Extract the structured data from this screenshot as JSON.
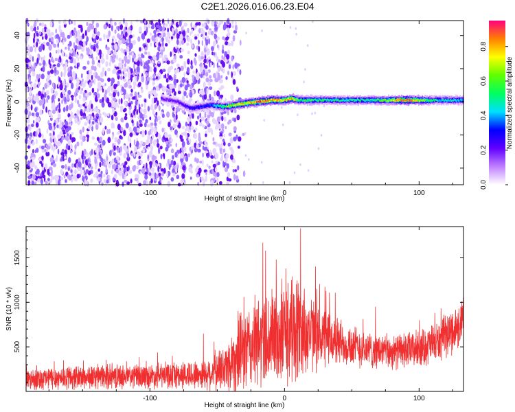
{
  "figure_title": "C2E1.2026.016.06.23.E04",
  "chart_data": [
    {
      "type": "heatmap",
      "title": "C2E1.2026.016.06.23.E04",
      "xlabel": "Height of straight line (km)",
      "ylabel": "Frequency (Hz)",
      "xlim": [
        -192,
        133
      ],
      "ylim": [
        -50,
        49
      ],
      "x_ticks": [
        -100,
        0,
        100
      ],
      "x_tick_labels": [
        "-100",
        "0",
        "100"
      ],
      "y_ticks": [
        -40,
        -20,
        0,
        20,
        40
      ],
      "y_tick_labels": [
        "-40",
        "-20",
        "0",
        "20",
        "40"
      ],
      "colorbar": {
        "label": "Normalized spectral amplitude",
        "range": [
          0.0,
          0.95
        ],
        "ticks": [
          0.0,
          0.2,
          0.4,
          0.6,
          0.8
        ],
        "tick_labels": [
          "0.0",
          "0.2",
          "0.4",
          "0.6",
          "0.8"
        ],
        "colormap": [
          "#ffffff",
          "#c080ff",
          "#6000ff",
          "#0000ff",
          "#00e0ff",
          "#00ff60",
          "#60ff00",
          "#ffff00",
          "#ff8000",
          "#ff0080"
        ]
      },
      "noise_region_km": [
        -192,
        -45
      ],
      "signal_track": [
        {
          "x": -92,
          "freq": 2,
          "amp": 0.2
        },
        {
          "x": -80,
          "freq": 0,
          "amp": 0.22
        },
        {
          "x": -70,
          "freq": -4,
          "amp": 0.3
        },
        {
          "x": -55,
          "freq": -2,
          "amp": 0.35
        },
        {
          "x": -45,
          "freq": -3,
          "amp": 0.6
        },
        {
          "x": -30,
          "freq": -1,
          "amp": 0.8
        },
        {
          "x": -20,
          "freq": 0,
          "amp": 0.9
        },
        {
          "x": -10,
          "freq": 1,
          "amp": 0.85
        },
        {
          "x": 0,
          "freq": 1,
          "amp": 0.8
        },
        {
          "x": 5,
          "freq": 2,
          "amp": 0.9
        },
        {
          "x": 10,
          "freq": 1,
          "amp": 0.6
        },
        {
          "x": 40,
          "freq": 1,
          "amp": 0.5
        },
        {
          "x": 70,
          "freq": 1,
          "amp": 0.55
        },
        {
          "x": 90,
          "freq": 1,
          "amp": 0.95
        },
        {
          "x": 110,
          "freq": 1,
          "amp": 0.5
        },
        {
          "x": 133,
          "freq": 1,
          "amp": 0.45
        }
      ]
    },
    {
      "type": "line",
      "xlabel": "Height of straight line (km)",
      "ylabel": "SNR (10 * v/v)",
      "xlim": [
        -192,
        133
      ],
      "ylim": [
        0,
        1850
      ],
      "x_ticks": [
        -100,
        0,
        100
      ],
      "x_tick_labels": [
        "-100",
        "0",
        "100"
      ],
      "y_ticks": [
        500,
        1000,
        1500
      ],
      "y_tick_labels": [
        "500",
        "1000",
        "1500"
      ],
      "color": "#f03030",
      "envelope": [
        {
          "x": -192,
          "base": 140,
          "spread": 120
        },
        {
          "x": -150,
          "base": 160,
          "spread": 130
        },
        {
          "x": -100,
          "base": 170,
          "spread": 130
        },
        {
          "x": -60,
          "base": 190,
          "spread": 160
        },
        {
          "x": -45,
          "base": 250,
          "spread": 250
        },
        {
          "x": -35,
          "base": 400,
          "spread": 400
        },
        {
          "x": -20,
          "base": 550,
          "spread": 500
        },
        {
          "x": 0,
          "base": 650,
          "spread": 550
        },
        {
          "x": 10,
          "base": 700,
          "spread": 600
        },
        {
          "x": 20,
          "base": 650,
          "spread": 400
        },
        {
          "x": 40,
          "base": 560,
          "spread": 260
        },
        {
          "x": 60,
          "base": 470,
          "spread": 200
        },
        {
          "x": 80,
          "base": 440,
          "spread": 180
        },
        {
          "x": 100,
          "base": 480,
          "spread": 200
        },
        {
          "x": 115,
          "base": 560,
          "spread": 220
        },
        {
          "x": 133,
          "base": 780,
          "spread": 250
        }
      ],
      "peaks": [
        {
          "x": 12,
          "y": 1830
        },
        {
          "x": -16,
          "y": 1670
        },
        {
          "x": -14,
          "y": 1580
        },
        {
          "x": -6,
          "y": 1480
        },
        {
          "x": 1,
          "y": 1380
        },
        {
          "x": 6,
          "y": 1290
        },
        {
          "x": -30,
          "y": 1060
        },
        {
          "x": -60,
          "y": 650
        },
        {
          "x": 24,
          "y": 1150
        },
        {
          "x": 133,
          "y": 1060
        }
      ]
    }
  ]
}
